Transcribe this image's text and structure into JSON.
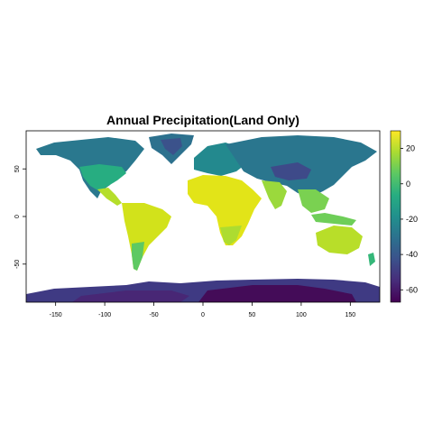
{
  "chart_data": {
    "type": "heatmap",
    "title": "Annual Precipitation(Land Only)",
    "xlabel": "",
    "ylabel": "",
    "xlim": [
      -180,
      180
    ],
    "ylim": [
      -90,
      90
    ],
    "x_ticks": [
      "-150",
      "-100",
      "-50",
      "0",
      "50",
      "100",
      "150"
    ],
    "x_tick_values": [
      -150,
      -100,
      -50,
      0,
      50,
      100,
      150
    ],
    "y_ticks": [
      "50",
      "0",
      "-50"
    ],
    "y_tick_values": [
      50,
      0,
      -50
    ],
    "colorbar": {
      "palette": "viridis",
      "range": [
        -67,
        30
      ],
      "ticks": [
        "20",
        "0",
        "-20",
        "-40",
        "-60"
      ],
      "tick_values": [
        20,
        0,
        -20,
        -40,
        -60
      ],
      "colors": [
        "#440154",
        "#472c7a",
        "#3b518b",
        "#2c718e",
        "#21908d",
        "#27ad81",
        "#5cc863",
        "#aadc32",
        "#fde725"
      ]
    },
    "grid": false,
    "legend": "right"
  }
}
